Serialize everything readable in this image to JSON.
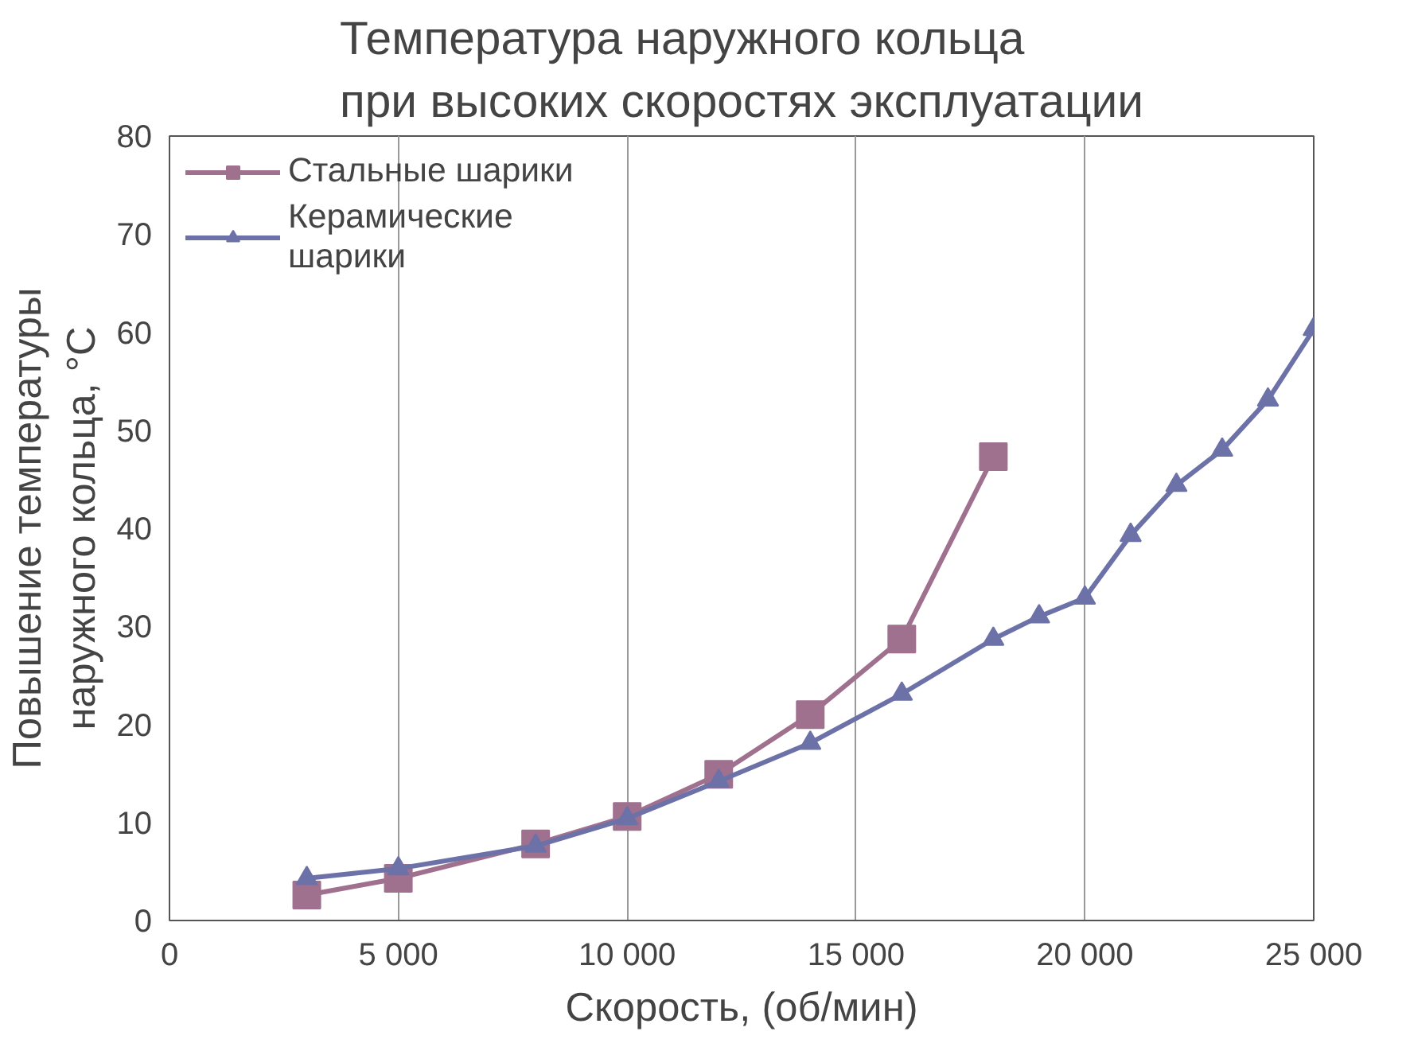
{
  "chart_data": {
    "type": "line",
    "title": "Температура наружного кольца\nпри высоких скоростях эксплуатации",
    "xlabel": "Скорость, (об/мин)",
    "ylabel": "Повышение температуры\nнаружного кольца, °C",
    "xlim": [
      0,
      25000
    ],
    "ylim": [
      0,
      80
    ],
    "xticks": [
      0,
      {
        "value": 5000,
        "label": "5 000"
      },
      {
        "value": 10000,
        "label": "10 000"
      },
      {
        "value": 15000,
        "label": "15 000"
      },
      {
        "value": 20000,
        "label": "20 000"
      },
      {
        "value": 25000,
        "label": "25 000"
      }
    ],
    "yticks": [
      0,
      10,
      20,
      30,
      40,
      50,
      60,
      70,
      80
    ],
    "grid": "x",
    "legend": "top left",
    "series": [
      {
        "name": "Стальные шарики",
        "color": "#a0708f",
        "marker": "square",
        "x": [
          3000,
          5000,
          8000,
          10000,
          12000,
          14000,
          16000,
          18000
        ],
        "values": [
          2.6,
          4.3,
          7.8,
          10.6,
          14.9,
          21,
          28.7,
          47.3
        ]
      },
      {
        "name": "Керамические\nшарики",
        "color": "#6c72a8",
        "marker": "triangle",
        "x": [
          3000,
          5000,
          8000,
          10000,
          12000,
          14000,
          16000,
          18000,
          19000,
          20000,
          21000,
          22000,
          23000,
          24000,
          25000
        ],
        "values": [
          4.3,
          5.3,
          7.6,
          10.4,
          14.2,
          18.1,
          23.1,
          28.7,
          31,
          32.9,
          39.3,
          44.4,
          48,
          53.1,
          60.3
        ]
      }
    ]
  }
}
